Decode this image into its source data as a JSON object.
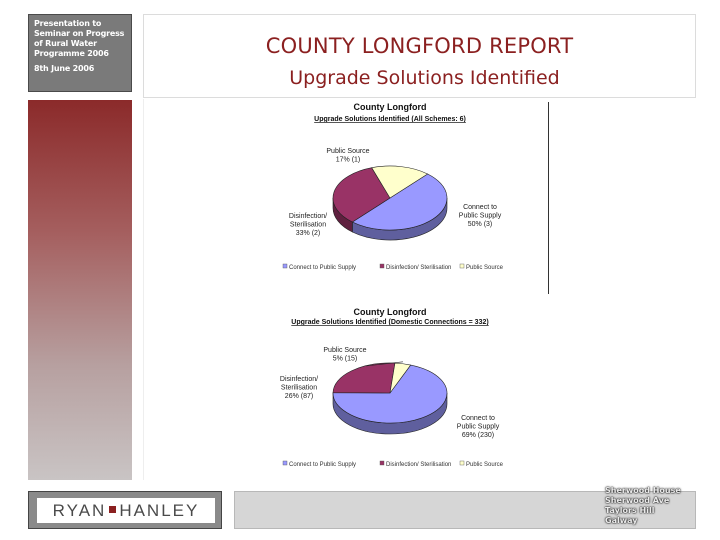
{
  "sidebar": {
    "lines": [
      "Presentation to",
      "Seminar on Progress",
      "of Rural Water",
      "Programme 2006"
    ],
    "date": "8th June 2006"
  },
  "header": {
    "title": "COUNTY LONGFORD REPORT",
    "subtitle": "Upgrade Solutions Identified"
  },
  "footer": {
    "logo_left": "RYAN",
    "logo_right": "HANLEY",
    "address": [
      "Sherwood House",
      "Sherwood Ave",
      "Taylors Hill",
      "Galway"
    ]
  },
  "colors": {
    "title_red": "#8b2020",
    "connect": "#9999ff",
    "disinfection": "#993366",
    "public_source": "#ffffcc"
  },
  "chart_data": [
    {
      "type": "pie",
      "title": "County Longford",
      "subtitle": "Upgrade Solutions Identified (All Schemes: 6)",
      "slices": [
        {
          "name": "Connect to Public Supply",
          "value": 3,
          "percent": 50,
          "label": "Connect to\nPublic Supply\n50% (3)",
          "color": "#9999ff"
        },
        {
          "name": "Disinfection/ Sterilisation",
          "value": 2,
          "percent": 33,
          "label": "Disinfection/\nSterilisation\n33% (2)",
          "color": "#993366"
        },
        {
          "name": "Public Source",
          "value": 1,
          "percent": 17,
          "label": "Public Source\n17% (1)",
          "color": "#ffffcc"
        }
      ],
      "legend": [
        "Connect to Public Supply",
        "Disinfection/ Sterilisation",
        "Public Source"
      ],
      "legend_position": "bottom"
    },
    {
      "type": "pie",
      "title": "County Longford",
      "subtitle": "Upgrade Solutions Identified (Domestic Connections = 332)",
      "slices": [
        {
          "name": "Connect to Public Supply",
          "value": 230,
          "percent": 69,
          "label": "Connect to\nPublic Supply\n69% (230)",
          "color": "#9999ff"
        },
        {
          "name": "Disinfection/ Sterilisation",
          "value": 87,
          "percent": 26,
          "label": "Disinfection/\nSterilisation\n26% (87)",
          "color": "#993366"
        },
        {
          "name": "Public Source",
          "value": 15,
          "percent": 5,
          "label": "Public Source\n5% (15)",
          "color": "#ffffcc"
        }
      ],
      "legend": [
        "Connect to Public Supply",
        "Disinfection/ Sterilisation",
        "Public Source"
      ],
      "legend_position": "bottom"
    }
  ]
}
